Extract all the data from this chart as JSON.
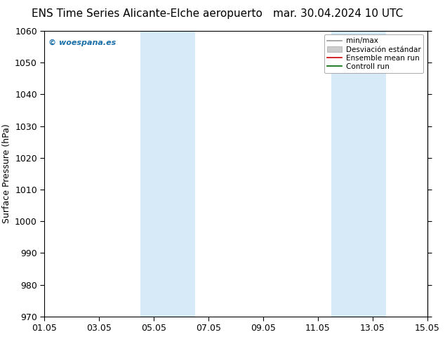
{
  "title_left": "ENS Time Series Alicante-Elche aeropuerto",
  "title_right": "mar. 30.04.2024 10 UTC",
  "ylabel": "Surface Pressure (hPa)",
  "ylim": [
    970,
    1060
  ],
  "yticks": [
    970,
    980,
    990,
    1000,
    1010,
    1020,
    1030,
    1040,
    1050,
    1060
  ],
  "xlim": [
    0,
    14
  ],
  "xtick_labels": [
    "01.05",
    "03.05",
    "05.05",
    "07.05",
    "09.05",
    "11.05",
    "13.05",
    "15.05"
  ],
  "xtick_positions": [
    0,
    2,
    4,
    6,
    8,
    10,
    12,
    14
  ],
  "shade_bands": [
    {
      "start": 3.5,
      "end": 4.5,
      "color": "#d6eaf8",
      "alpha": 1.0
    },
    {
      "start": 4.5,
      "end": 5.5,
      "color": "#d6eaf8",
      "alpha": 1.0
    },
    {
      "start": 10.5,
      "end": 11.5,
      "color": "#d6eaf8",
      "alpha": 1.0
    },
    {
      "start": 11.5,
      "end": 12.5,
      "color": "#d6eaf8",
      "alpha": 1.0
    }
  ],
  "watermark": "© woespana.es",
  "watermark_color": "#1a6fa8",
  "legend_items": [
    {
      "label": "min/max",
      "color": "#999999",
      "lw": 1.2,
      "style": "-",
      "type": "line"
    },
    {
      "label": "Desviación estándar",
      "color": "#cccccc",
      "lw": 8,
      "style": "-",
      "type": "patch"
    },
    {
      "label": "Ensemble mean run",
      "color": "#cc0000",
      "lw": 1.2,
      "style": "-",
      "type": "line"
    },
    {
      "label": "Controll run",
      "color": "#006600",
      "lw": 1.2,
      "style": "-",
      "type": "line"
    }
  ],
  "bg_color": "#ffffff",
  "plot_bg_color": "#ffffff",
  "title_fontsize": 11,
  "tick_fontsize": 9,
  "ylabel_fontsize": 9
}
